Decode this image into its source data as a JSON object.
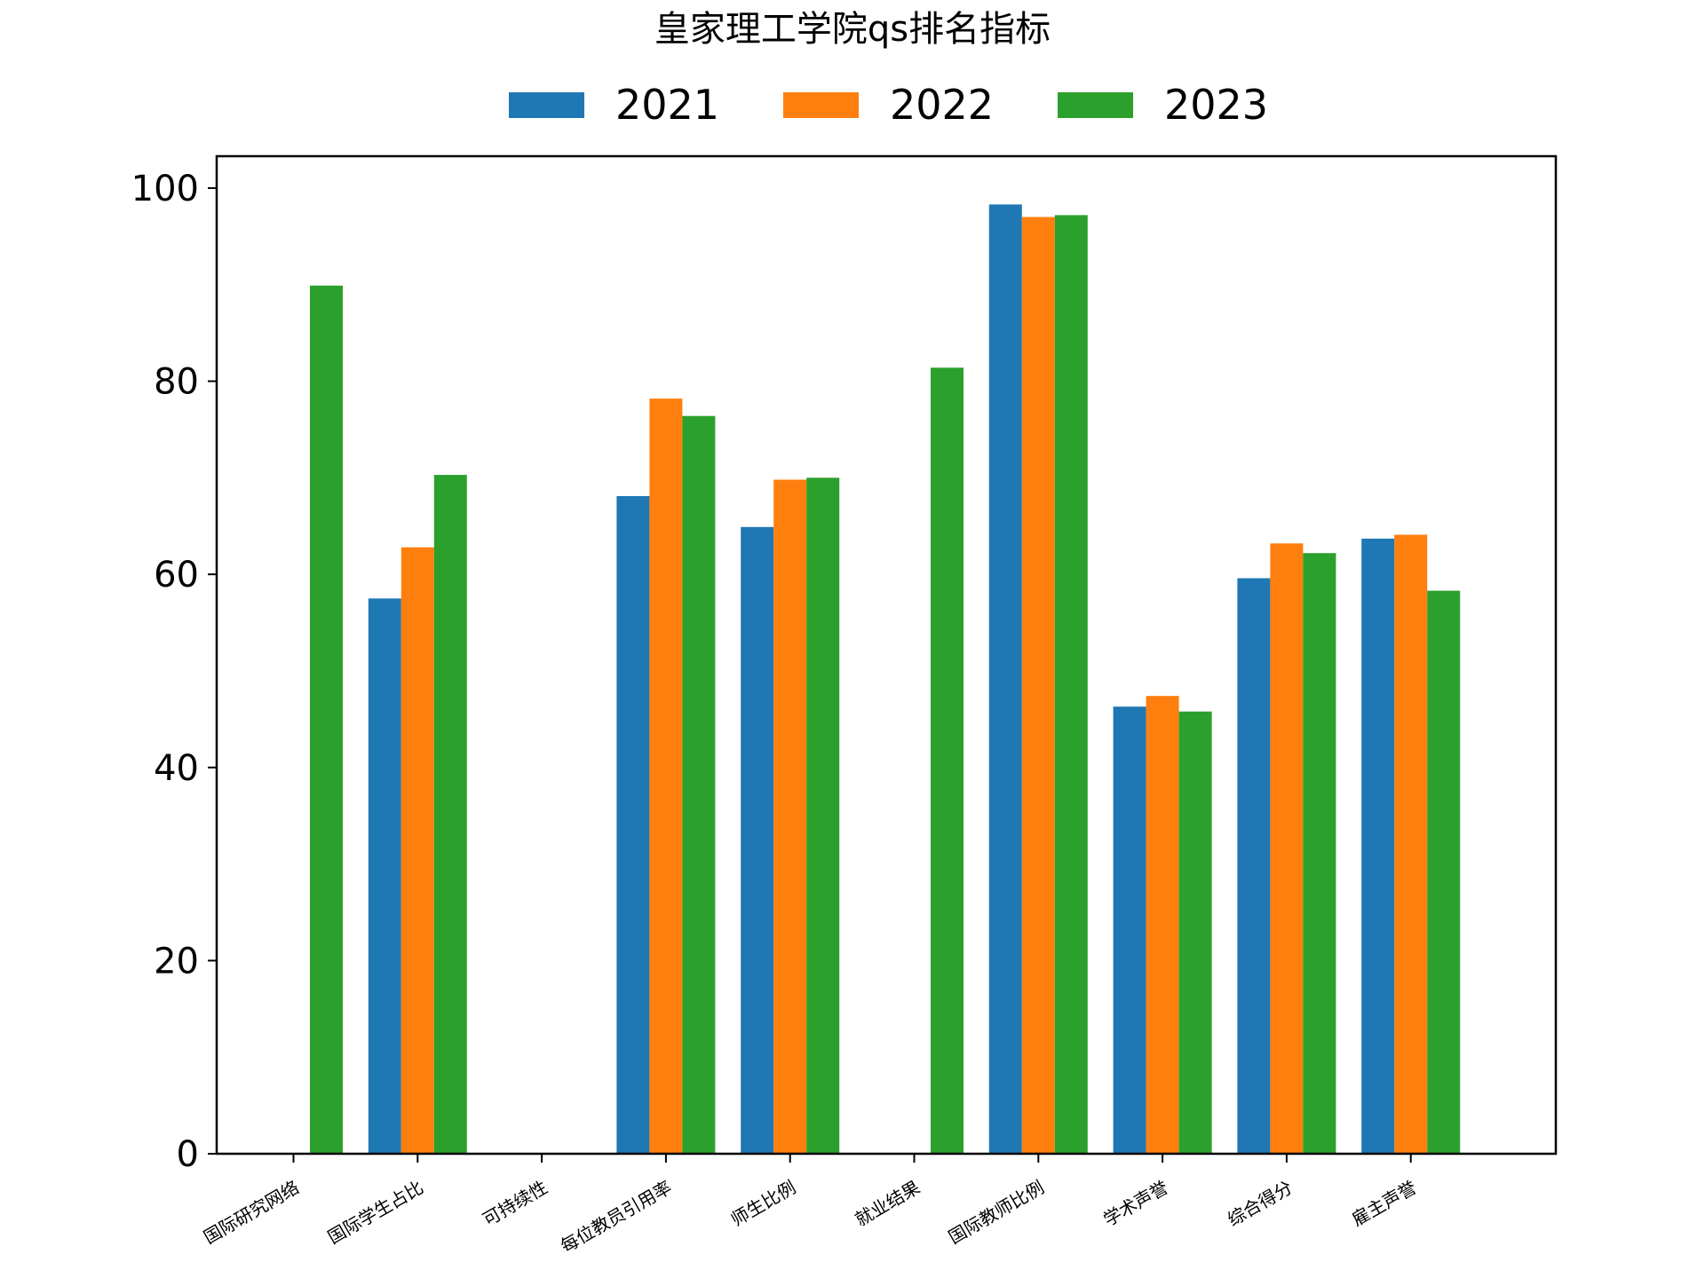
{
  "chart_data": {
    "type": "bar",
    "title": "皇家理工学院qs排名指标",
    "xlabel": "",
    "ylabel": "",
    "ylim": [
      0,
      103.3
    ],
    "yticks": [
      0,
      20,
      40,
      60,
      80,
      100
    ],
    "grid": false,
    "legend_position": "top-center",
    "categories": [
      "国际研究网络",
      "国际学生占比",
      "可持续性",
      "每位教员引用率",
      "师生比例",
      "就业结果",
      "国际教师比例",
      "学术声誉",
      "综合得分",
      "雇主声誉"
    ],
    "series": [
      {
        "name": "2021",
        "color": "#1f77b4",
        "values": [
          null,
          57.5,
          null,
          68.1,
          64.9,
          null,
          98.3,
          46.3,
          59.6,
          63.7
        ]
      },
      {
        "name": "2022",
        "color": "#ff7f0e",
        "values": [
          null,
          62.8,
          null,
          78.2,
          69.8,
          null,
          97.0,
          47.4,
          63.2,
          64.1
        ]
      },
      {
        "name": "2023",
        "color": "#2ca02c",
        "values": [
          89.9,
          70.3,
          null,
          76.4,
          70.0,
          81.4,
          97.2,
          45.8,
          62.2,
          58.3
        ]
      }
    ]
  }
}
